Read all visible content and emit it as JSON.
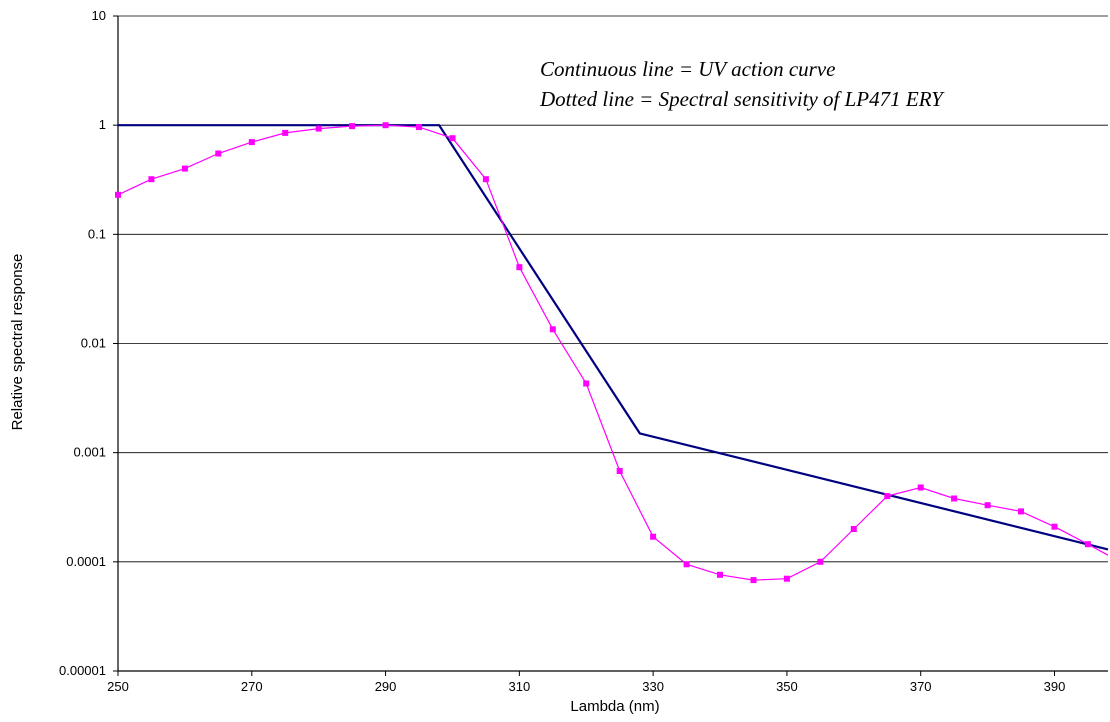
{
  "chart_data": {
    "type": "line",
    "xlabel": "Lambda (nm)",
    "ylabel": "Relative spectral response",
    "xlim": [
      250,
      398
    ],
    "ylim": [
      1e-05,
      10
    ],
    "ylog": true,
    "grid": "horizontal",
    "legend": "none",
    "xticks": [
      "250",
      "270",
      "290",
      "310",
      "330",
      "350",
      "370",
      "390"
    ],
    "yticks": [
      "0.00001",
      "0.0001",
      "0.001",
      "0.01",
      "0.1",
      "1",
      "10"
    ],
    "annotations": [
      "Continuous line  = UV action curve",
      "Dotted line = Spectral sensitivity of LP471 ERY"
    ],
    "series": [
      {
        "style": "solid",
        "color": "#000080",
        "x": [
          250,
          298,
          328,
          398
        ],
        "y": [
          1,
          1,
          0.0015,
          0.00013
        ]
      },
      {
        "style": "markers",
        "color": "#ff00ff",
        "x": [
          250,
          255,
          260,
          265,
          270,
          275,
          280,
          285,
          290,
          295,
          300,
          305,
          310,
          315,
          320,
          325,
          330,
          335,
          340,
          345,
          350,
          355,
          360,
          365,
          370,
          375,
          380,
          385,
          390,
          395,
          398
        ],
        "y": [
          0.23,
          0.32,
          0.4,
          0.55,
          0.7,
          0.85,
          0.93,
          0.98,
          1.0,
          0.96,
          0.76,
          0.32,
          0.05,
          0.0135,
          0.0043,
          0.00068,
          0.00017,
          9.5e-05,
          7.6e-05,
          6.8e-05,
          7e-05,
          0.0001,
          0.0002,
          0.0004,
          0.00048,
          0.00038,
          0.00033,
          0.00029,
          0.00021,
          0.000145,
          0.000115
        ]
      }
    ]
  }
}
